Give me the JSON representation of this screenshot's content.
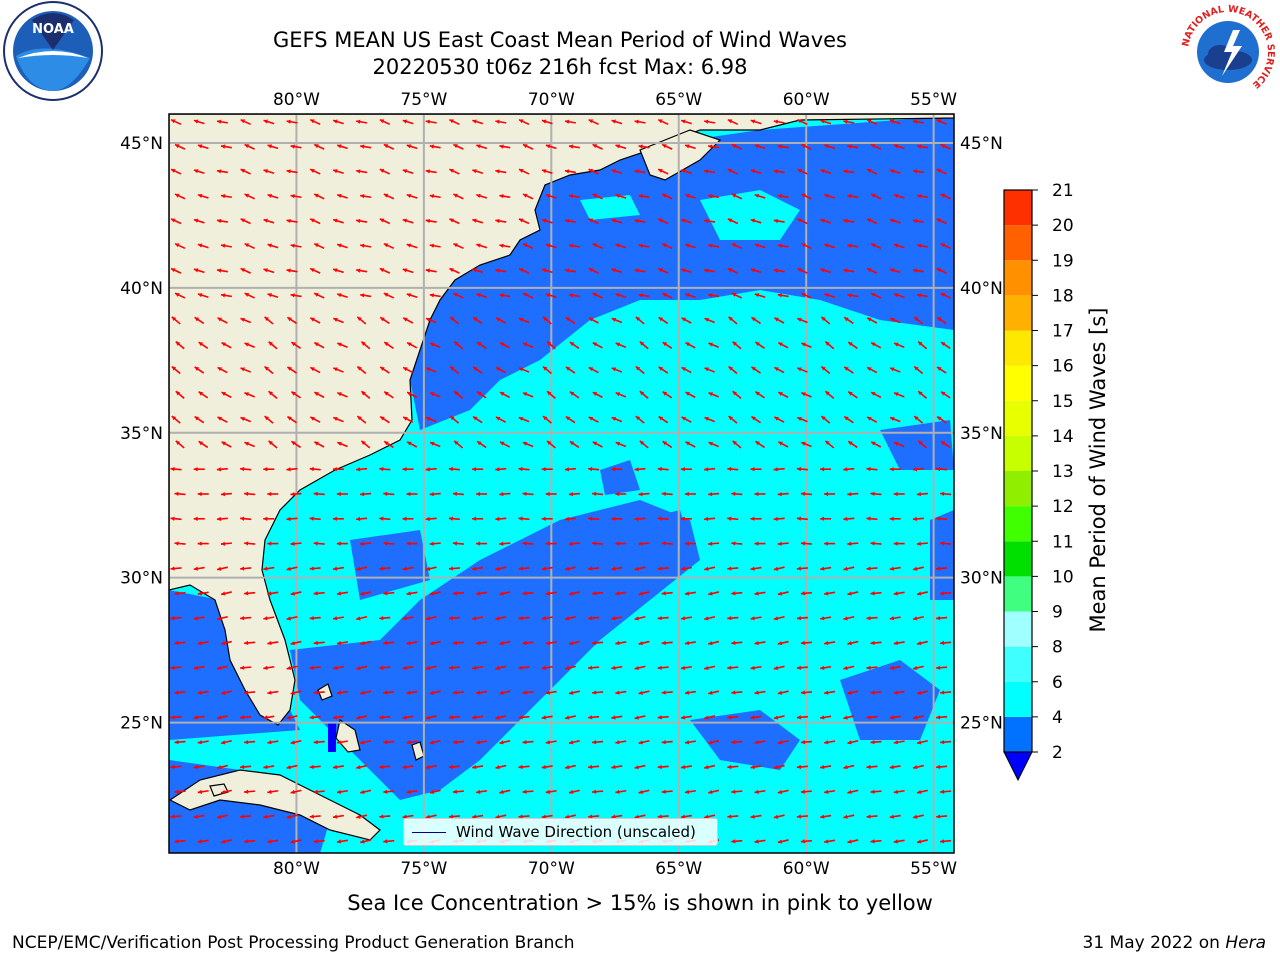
{
  "header": {
    "title_line1": "GEFS MEAN US East Coast Mean Period of Wind Waves",
    "title_line2": "20220530 t06z 216h fcst   Max: 6.98"
  },
  "logos": {
    "noaa": {
      "text": "NOAA",
      "icon": "noaa-logo-icon"
    },
    "nws": {
      "text": "NATIONAL WEATHER SERVICE",
      "icon": "nws-logo-icon"
    }
  },
  "map": {
    "lon_labels": [
      "80°W",
      "75°W",
      "70°W",
      "65°W",
      "60°W",
      "55°W"
    ],
    "lon_values": [
      -80,
      -75,
      -70,
      -65,
      -60,
      -55
    ],
    "lat_labels": [
      "45°N",
      "40°N",
      "35°N",
      "30°N",
      "25°N"
    ],
    "lat_values": [
      45,
      40,
      35,
      30,
      25
    ],
    "extent": {
      "lon_min": -85,
      "lon_max": -54.2,
      "lat_min": 20.5,
      "lat_max": 46
    },
    "land_color": "#efefdc",
    "low_period_color": "#1e6eff",
    "mid_period_color": "#00ffff",
    "arrow_color": "#ff0000",
    "legend_label": "Wind Wave Direction (unscaled)"
  },
  "colorbar": {
    "label": "Mean Period of Wind Waves [s]",
    "ticks": [
      "2",
      "4",
      "6",
      "8",
      "9",
      "10",
      "11",
      "12",
      "13",
      "14",
      "15",
      "16",
      "17",
      "18",
      "19",
      "20",
      "21"
    ],
    "colors": [
      "#0072ff",
      "#00ffff",
      "#40ffff",
      "#a0ffff",
      "#40ff80",
      "#00e000",
      "#40ff00",
      "#90ee00",
      "#c8ff00",
      "#e8ff00",
      "#ffff00",
      "#ffe800",
      "#ffb000",
      "#ff9000",
      "#ff6000",
      "#ff3000",
      "#ff0000"
    ],
    "under_color": "#0000ff"
  },
  "footer": {
    "note": "Sea Ice Concentration > 15% is shown in pink to yellow",
    "left": "NCEP/EMC/Verification Post Processing Product Generation Branch",
    "right_date": "31 May 2022 on ",
    "right_host": "Hera"
  }
}
